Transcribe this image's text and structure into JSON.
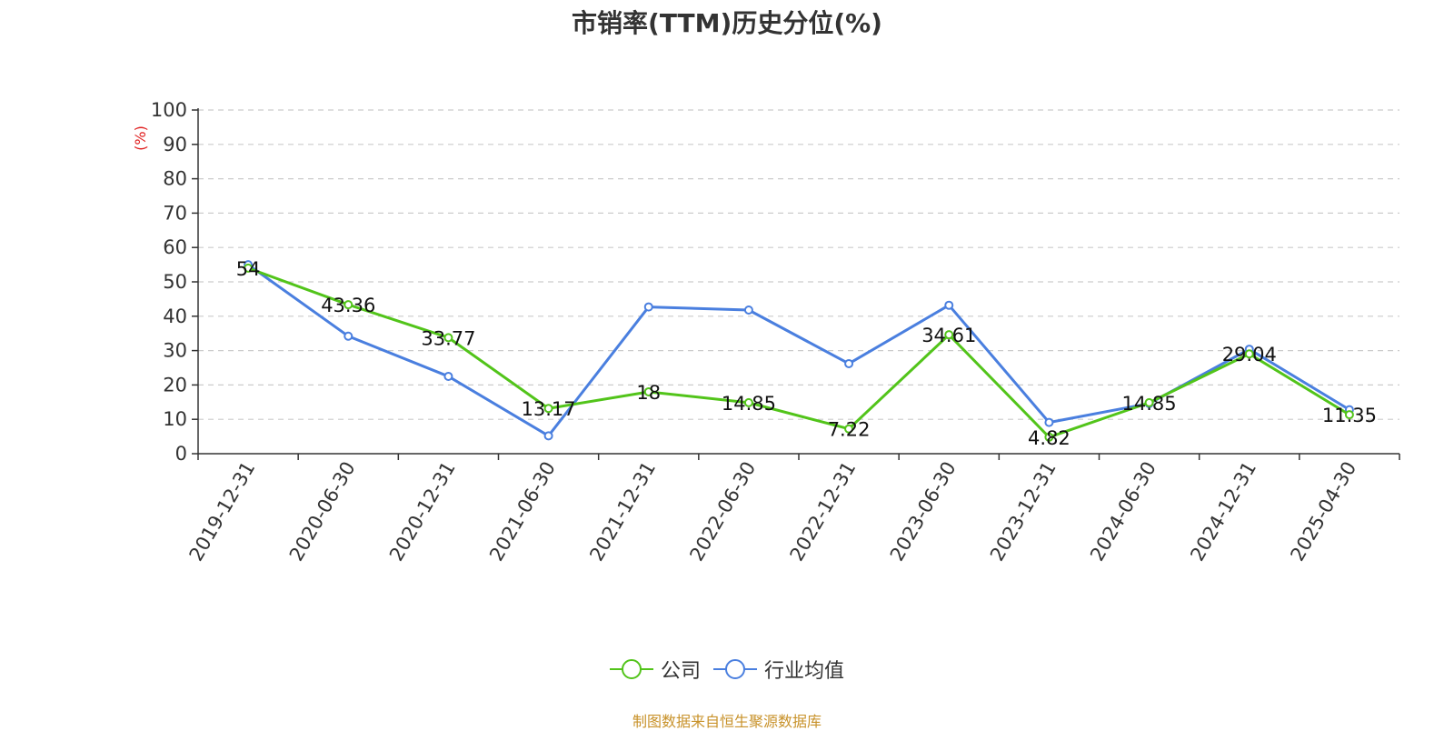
{
  "chart_data": {
    "type": "line",
    "title": "市销率(TTM)历史分位(%)",
    "ylabel": "(%)",
    "xlabel": "",
    "ylim": [
      0,
      100
    ],
    "yticks": [
      0,
      10,
      20,
      30,
      40,
      50,
      60,
      70,
      80,
      90,
      100
    ],
    "grid": true,
    "legend_position": "bottom",
    "categories": [
      "2019-12-31",
      "2020-06-30",
      "2020-12-31",
      "2021-06-30",
      "2021-12-31",
      "2022-06-30",
      "2022-12-31",
      "2023-06-30",
      "2023-12-31",
      "2024-06-30",
      "2024-12-31",
      "2025-04-30"
    ],
    "series": [
      {
        "name": "公司",
        "color": "#52c41a",
        "values": [
          54,
          43.36,
          33.77,
          13.17,
          18,
          14.85,
          7.22,
          34.61,
          4.82,
          14.85,
          29.04,
          11.35
        ],
        "labels": [
          "54",
          "43.36",
          "33.77",
          "13.17",
          "18",
          "14.85",
          "7.22",
          "34.61",
          "4.82",
          "14.85",
          "29.04",
          "11.35"
        ]
      },
      {
        "name": "行业均值",
        "color": "#4a7fdf",
        "values": [
          55,
          34.2,
          22.5,
          5.2,
          42.7,
          41.8,
          26.2,
          43.2,
          9.1,
          14.6,
          30.4,
          12.8
        ]
      }
    ]
  },
  "source_note": "制图数据来自恒生聚源数据库"
}
